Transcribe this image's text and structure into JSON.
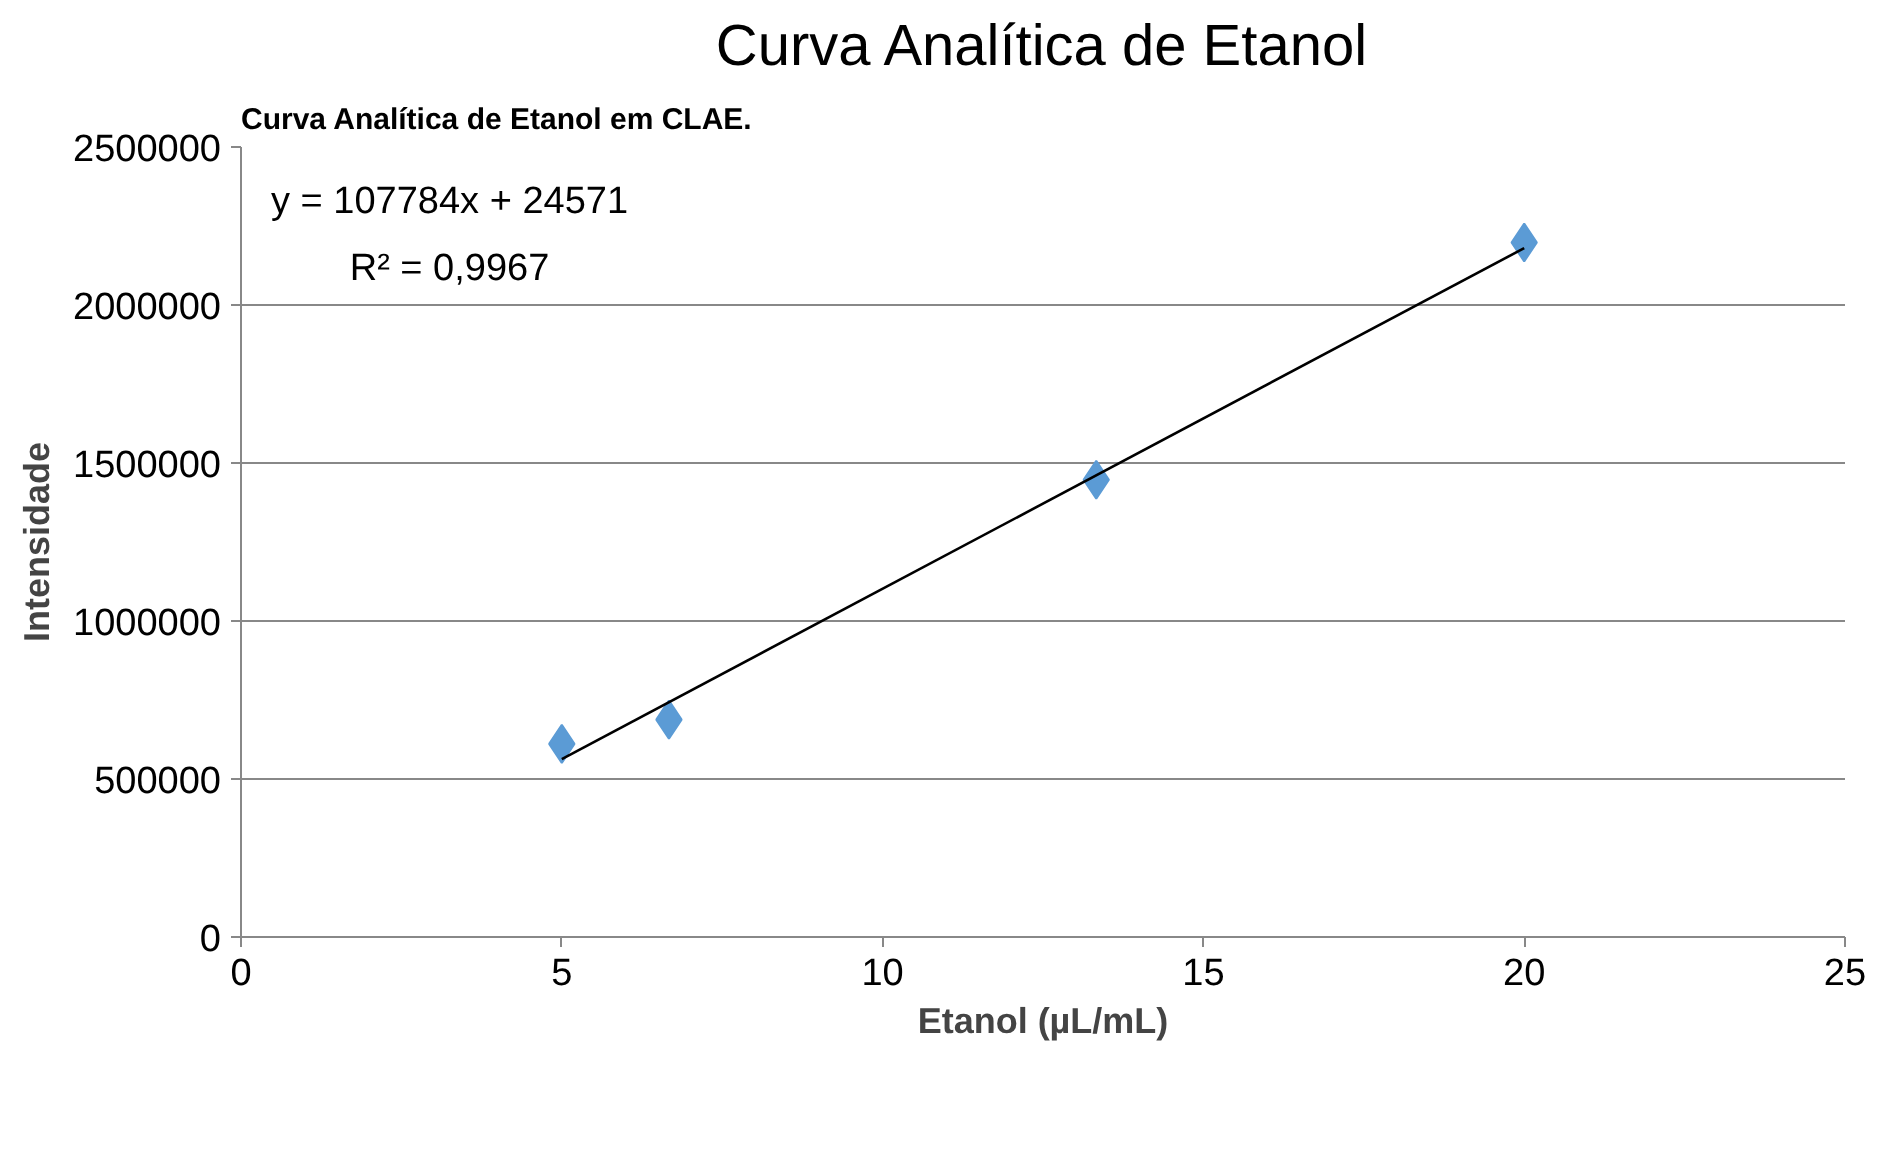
{
  "chart_data": {
    "type": "scatter",
    "title": "Curva Analítica de Etanol",
    "xlabel": "Etanol (µL/mL)",
    "ylabel": "Intensidade",
    "annotations": [
      "Curva Analítica de Etanol em CLAE.",
      "y = 107784x + 24571",
      "R² = 0,9967"
    ],
    "x": [
      5,
      6.67,
      13.33,
      20
    ],
    "series": [
      {
        "color": "#5b9bd5",
        "values": [
          611000,
          688000,
          1447000,
          2198000
        ]
      },
      {
        "type": "line",
        "color": "#000000",
        "marker": "none",
        "x": [
          5,
          20
        ],
        "values": [
          563000,
          2180000
        ]
      }
    ],
    "xlim": [
      0,
      25
    ],
    "xticks": [
      0,
      5,
      10,
      15,
      20,
      25
    ],
    "ylim": [
      0,
      2500000
    ],
    "yticks": [
      0,
      500000,
      1000000,
      1500000,
      2000000,
      2500000
    ],
    "grid": "y",
    "marker": "diamond"
  }
}
